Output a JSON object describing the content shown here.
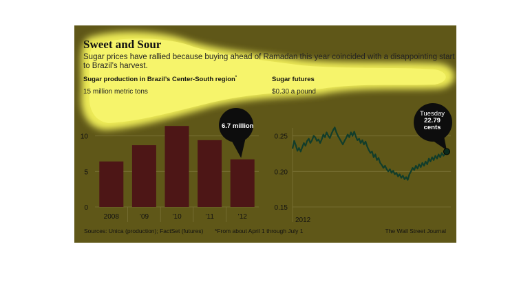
{
  "header": {
    "title": "Sweet and Sour",
    "subtitle": "Sugar prices have rallied because buying ahead of Ramadan this year coincided with a disappointing start to Brazil’s harvest."
  },
  "footer": {
    "sources": "Sources: Unica (production); FactSet (futures)",
    "note": "*From about April 1 through July 1",
    "credit": "The Wall Street Journal"
  },
  "colors": {
    "panel": "#5f5718",
    "highlight": "#f4f25a",
    "bar": "#4d1616",
    "line": "#113d2b",
    "callout": "#0d0d0d"
  },
  "chart_data": [
    {
      "type": "bar",
      "title": "Sugar production in Brazil’s Center-South region",
      "title_marker": "*",
      "unit_label": "15 million metric tons",
      "categories": [
        "2008",
        "’09",
        "’10",
        "’11",
        "’12"
      ],
      "values": [
        6.4,
        8.7,
        11.4,
        9.4,
        6.7
      ],
      "ylim": [
        0,
        15
      ],
      "yticks": [
        0,
        5,
        10
      ],
      "grid": true,
      "callout": {
        "category": "’12",
        "text": "6.7 million"
      }
    },
    {
      "type": "line",
      "title": "Sugar futures",
      "unit_label": "$0.30 a pound",
      "x_label": "2012",
      "ylim": [
        0.15,
        0.3
      ],
      "yticks": [
        0.15,
        0.2,
        0.25
      ],
      "ytick_labels": [
        "0.15",
        "0.20",
        "0.25"
      ],
      "grid": true,
      "values": [
        0.232,
        0.243,
        0.237,
        0.229,
        0.233,
        0.228,
        0.234,
        0.24,
        0.236,
        0.243,
        0.246,
        0.24,
        0.244,
        0.25,
        0.248,
        0.243,
        0.245,
        0.24,
        0.245,
        0.252,
        0.248,
        0.255,
        0.25,
        0.247,
        0.253,
        0.258,
        0.262,
        0.255,
        0.25,
        0.246,
        0.242,
        0.238,
        0.243,
        0.247,
        0.252,
        0.248,
        0.255,
        0.25,
        0.256,
        0.249,
        0.244,
        0.246,
        0.24,
        0.244,
        0.238,
        0.242,
        0.235,
        0.23,
        0.226,
        0.228,
        0.22,
        0.224,
        0.216,
        0.219,
        0.212,
        0.209,
        0.205,
        0.208,
        0.203,
        0.2,
        0.203,
        0.198,
        0.201,
        0.196,
        0.198,
        0.193,
        0.196,
        0.191,
        0.194,
        0.189,
        0.192,
        0.188,
        0.196,
        0.2,
        0.205,
        0.202,
        0.208,
        0.204,
        0.21,
        0.206,
        0.212,
        0.208,
        0.214,
        0.21,
        0.218,
        0.214,
        0.22,
        0.216,
        0.222,
        0.218,
        0.224,
        0.22,
        0.226,
        0.222,
        0.225,
        0.2279
      ],
      "callout": {
        "line1": "Tuesday",
        "line2": "22.79",
        "line3": "cents"
      }
    }
  ]
}
